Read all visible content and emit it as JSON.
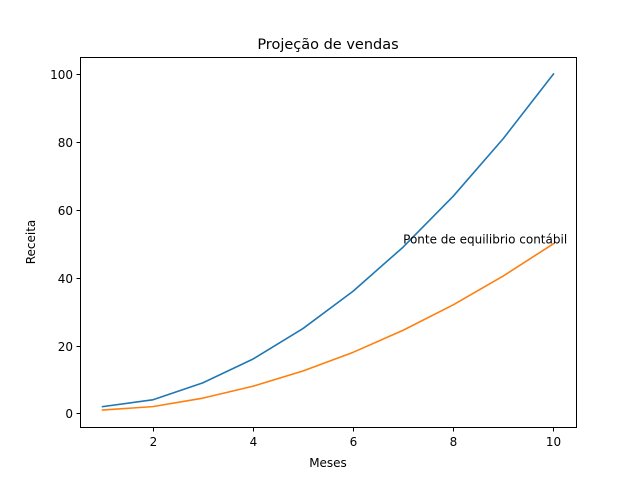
{
  "chart_data": {
    "type": "line",
    "title": "Projeção de vendas",
    "xlabel": "Meses",
    "ylabel": "Receita",
    "x": [
      1,
      2,
      3,
      4,
      5,
      6,
      7,
      8,
      9,
      10
    ],
    "xlim": [
      0.55,
      10.45
    ],
    "ylim": [
      -4,
      105
    ],
    "xticks": [
      2,
      4,
      6,
      8,
      10
    ],
    "yticks": [
      0,
      20,
      40,
      60,
      80,
      100
    ],
    "grid": false,
    "series": [
      {
        "color": "#1f77b4",
        "values": [
          2,
          4,
          9,
          16,
          25,
          36,
          49,
          64,
          81,
          100
        ]
      },
      {
        "color": "#ff7f0e",
        "values": [
          1,
          2,
          4.5,
          8,
          12.5,
          18,
          24.5,
          32,
          40.5,
          50
        ]
      }
    ],
    "annotations": [
      {
        "text": "Ponte de equilibrio contábil",
        "x": 7,
        "y": 50
      }
    ]
  }
}
